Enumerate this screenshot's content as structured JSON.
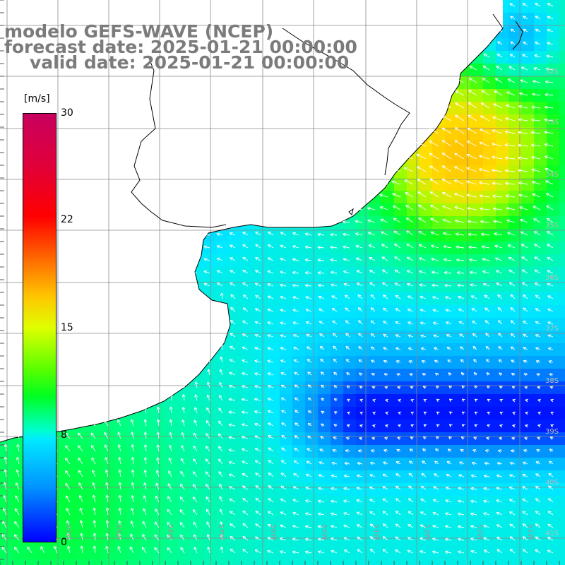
{
  "titles": {
    "line1": "modelo GEFS-WAVE (NCEP)",
    "line2": "forecast date: 2025-01-21 00:00:00",
    "line3": "valid date: 2025-01-21 00:00:00"
  },
  "colorbar": {
    "unit": "[m/s]",
    "ticks": [
      "30",
      "22",
      "15",
      "8",
      "0"
    ],
    "range": [
      0,
      30
    ],
    "colors": [
      "#0000ff",
      "#0096ff",
      "#00eaff",
      "#00ff22",
      "#55ff00",
      "#ffc800",
      "#ff0000",
      "#c8005e"
    ]
  },
  "lat_labels": [
    "32S",
    "33S",
    "34S",
    "35S",
    "36S",
    "37S",
    "38S",
    "39S",
    "40S",
    "41S"
  ],
  "lon_labels": [
    "60W",
    "59W",
    "58W",
    "57W",
    "56W",
    "55W",
    "54W",
    "53W",
    "52W",
    "51W"
  ],
  "map_style": {
    "land_color": "#ffffff",
    "grid_color": "#8a8a8a",
    "coast_color": "#000000",
    "arrow_color": "#ffffff",
    "field": "wind speed and direction"
  }
}
